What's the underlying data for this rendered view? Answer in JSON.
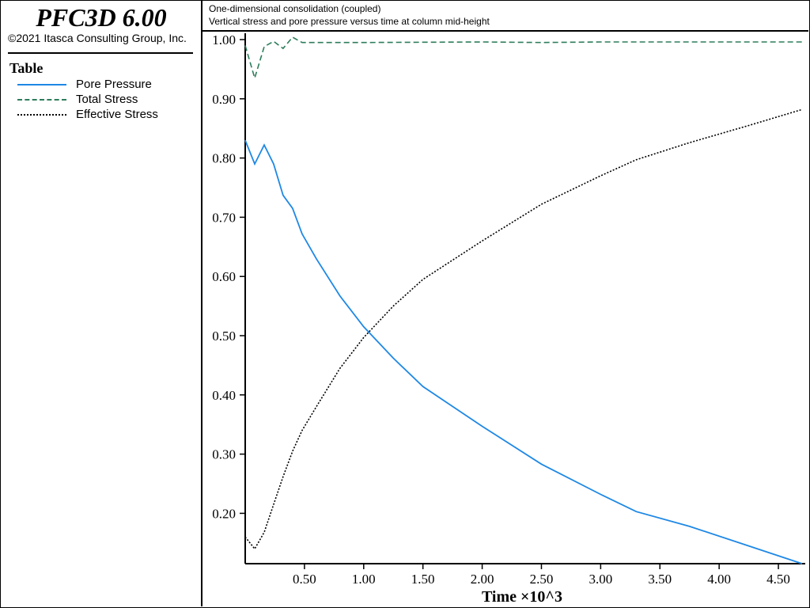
{
  "app": {
    "title": "PFC3D 6.00",
    "copyright": "©2021 Itasca Consulting Group, Inc."
  },
  "legend": {
    "title": "Table",
    "items": [
      {
        "label": "Pore Pressure",
        "color": "#1e88e5",
        "style": "solid"
      },
      {
        "label": "Total Stress",
        "color": "#2e7d5b",
        "style": "dashed"
      },
      {
        "label": "Effective Stress",
        "color": "#000000",
        "style": "dotted"
      }
    ]
  },
  "header": {
    "line1": "One-dimensional consolidation (coupled)",
    "line2": "Vertical stress and pore pressure versus time at column mid-height"
  },
  "chart_data": {
    "type": "line",
    "xlabel": "Time ×10^3",
    "ylabel": "",
    "xlim": [
      0,
      4.7
    ],
    "ylim": [
      0.115,
      1.0
    ],
    "xticks": [
      0.5,
      1.0,
      1.5,
      2.0,
      2.5,
      3.0,
      3.5,
      4.0,
      4.5
    ],
    "xtick_labels": [
      "0.50",
      "1.00",
      "1.50",
      "2.00",
      "2.50",
      "3.00",
      "3.50",
      "4.00",
      "4.50"
    ],
    "yticks": [
      0.2,
      0.3,
      0.4,
      0.5,
      0.6,
      0.7,
      0.8,
      0.9,
      1.0
    ],
    "ytick_labels": [
      "0.20",
      "0.30",
      "0.40",
      "0.50",
      "0.60",
      "0.70",
      "0.80",
      "0.90",
      "1.00"
    ],
    "grid": false,
    "series": [
      {
        "name": "Pore Pressure",
        "color": "#1e88e5",
        "style": "solid",
        "x": [
          0.0,
          0.08,
          0.16,
          0.24,
          0.32,
          0.4,
          0.48,
          0.6,
          0.8,
          1.0,
          1.25,
          1.5,
          2.0,
          2.5,
          3.0,
          3.3,
          3.75,
          4.25,
          4.7
        ],
        "y": [
          0.83,
          0.79,
          0.822,
          0.79,
          0.737,
          0.715,
          0.672,
          0.63,
          0.567,
          0.515,
          0.462,
          0.414,
          0.347,
          0.283,
          0.232,
          0.203,
          0.178,
          0.145,
          0.115
        ]
      },
      {
        "name": "Total Stress",
        "color": "#2e7d5b",
        "style": "dashed",
        "x": [
          0.0,
          0.08,
          0.16,
          0.24,
          0.32,
          0.4,
          0.48,
          1.0,
          2.0,
          2.5,
          3.0,
          4.7
        ],
        "y": [
          0.99,
          0.935,
          0.988,
          0.997,
          0.985,
          1.004,
          0.995,
          0.995,
          0.996,
          0.995,
          0.996,
          0.996
        ]
      },
      {
        "name": "Effective Stress",
        "color": "#000000",
        "style": "dotted",
        "x": [
          0.0,
          0.08,
          0.16,
          0.24,
          0.32,
          0.4,
          0.48,
          0.6,
          0.8,
          1.0,
          1.25,
          1.5,
          2.0,
          2.5,
          3.0,
          3.3,
          3.75,
          4.25,
          4.7
        ],
        "y": [
          0.16,
          0.14,
          0.168,
          0.215,
          0.262,
          0.305,
          0.34,
          0.38,
          0.445,
          0.497,
          0.55,
          0.595,
          0.66,
          0.722,
          0.77,
          0.797,
          0.826,
          0.855,
          0.882
        ]
      }
    ]
  }
}
